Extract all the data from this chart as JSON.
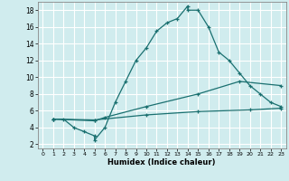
{
  "xlabel": "Humidex (Indice chaleur)",
  "bg_color": "#d0ecee",
  "grid_color": "#ffffff",
  "line_color": "#1a7070",
  "xlim": [
    -0.5,
    23.5
  ],
  "ylim": [
    1.5,
    19
  ],
  "xticks": [
    0,
    1,
    2,
    3,
    4,
    5,
    6,
    7,
    8,
    9,
    10,
    11,
    12,
    13,
    14,
    15,
    16,
    17,
    18,
    19,
    20,
    21,
    22,
    23
  ],
  "yticks": [
    2,
    4,
    6,
    8,
    10,
    12,
    14,
    16,
    18
  ],
  "line1_x": [
    1,
    2,
    3,
    4,
    5,
    5,
    6,
    7,
    8,
    9,
    10,
    11,
    12,
    13,
    14,
    14,
    15,
    16,
    17,
    18,
    19,
    20,
    21,
    22,
    23
  ],
  "line1_y": [
    5,
    5,
    4,
    3.5,
    3,
    2.5,
    4,
    7,
    9.5,
    12,
    13.5,
    15.5,
    16.5,
    17,
    18.5,
    18,
    18,
    16,
    13,
    12,
    10.5,
    9,
    8,
    7,
    6.5
  ],
  "line2_x": [
    1,
    5,
    6,
    10,
    15,
    19,
    23
  ],
  "line2_y": [
    5,
    4.8,
    5.2,
    6.5,
    8.0,
    9.5,
    9.0
  ],
  "line3_x": [
    1,
    5,
    10,
    15,
    20,
    23
  ],
  "line3_y": [
    5,
    4.9,
    5.5,
    5.9,
    6.1,
    6.3
  ]
}
